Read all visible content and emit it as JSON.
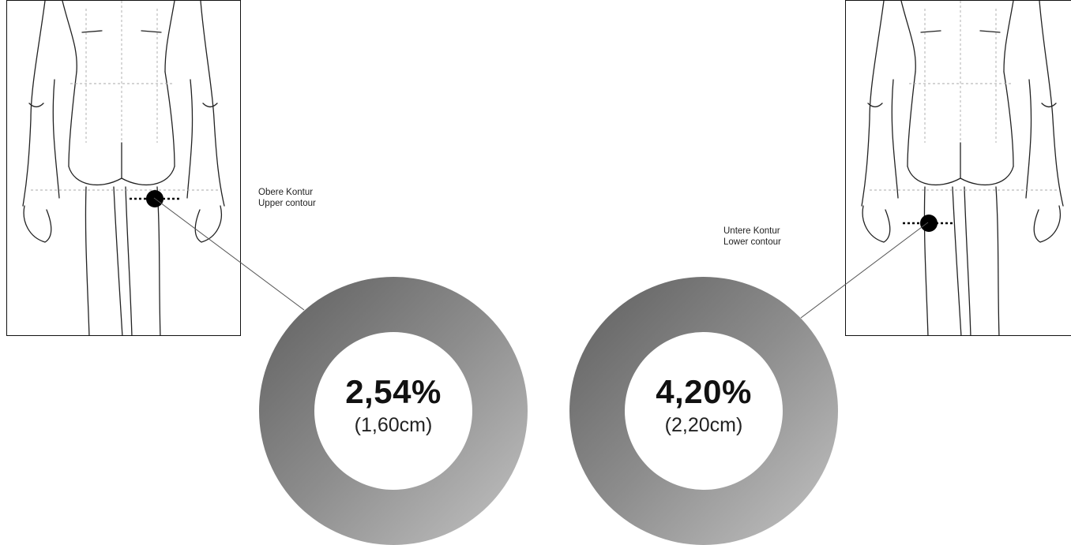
{
  "measurements": {
    "upper": {
      "label_de": "Obere Kontur",
      "label_en": "Upper contour",
      "percent": "2,54%",
      "distance": "(1,60cm)"
    },
    "lower": {
      "label_de": "Untere Kontur",
      "label_en": "Lower contour",
      "percent": "4,20%",
      "distance": "(2,20cm)"
    }
  },
  "colors": {
    "donut_dark": "#5e5e5e",
    "donut_light": "#c4c4c4",
    "marker": "#000000"
  }
}
